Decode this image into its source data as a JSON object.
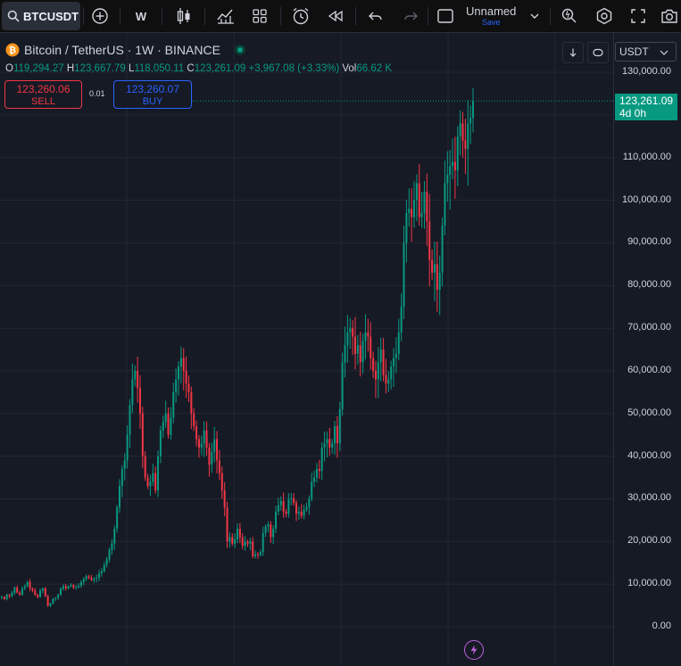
{
  "toolbar": {
    "symbol": "BTCUSDT",
    "interval": "W",
    "layout_name": "Unnamed",
    "layout_save": "Save",
    "icons": [
      "search-icon",
      "add-symbol-icon",
      "candles-icon",
      "indicators-icon",
      "templates-icon",
      "alert-icon",
      "replay-icon",
      "undo-icon",
      "redo-icon",
      "layout-icon",
      "chevron-down-icon",
      "quick-search-icon",
      "settings-icon",
      "fullscreen-icon",
      "screenshot-icon"
    ]
  },
  "legend": {
    "title": "Bitcoin / TetherUS · 1W · BINANCE",
    "open_label": "O",
    "open": "119,294.27",
    "high_label": "H",
    "high": "123,667.79",
    "low_label": "L",
    "low": "118,050.11",
    "close_label": "C",
    "close": "123,261.09",
    "change": "+3,967.08 (+3.33%)",
    "volume_label": "Vol",
    "volume": "66.62 K"
  },
  "trade": {
    "sell_price": "123,260.06",
    "sell_label": "SELL",
    "spread": "0.01",
    "buy_price": "123,260.07",
    "buy_label": "BUY"
  },
  "price_axis": {
    "currency": "USDT",
    "last_price": "123,261.09",
    "countdown": "4d 0h"
  },
  "colors": {
    "up": "#089981",
    "down": "#f23645",
    "buy": "#2962ff",
    "accent": "#c060e0"
  },
  "chart_data": {
    "type": "candlestick",
    "title": "Bitcoin / TetherUS · 1W · BINANCE",
    "ylim": [
      -3000,
      133000
    ],
    "y_ticks": [
      0,
      10000,
      20000,
      30000,
      40000,
      50000,
      60000,
      70000,
      80000,
      90000,
      100000,
      110000,
      120000,
      130000
    ],
    "y_tick_labels": [
      "0.00",
      "10,000.00",
      "20,000.00",
      "30,000.00",
      "40,000.00",
      "50,000.00",
      "60,000.00",
      "70,000.00",
      "80,000.00",
      "90,000.00",
      "100,000.00",
      "110,000.00",
      "120,000.00",
      "130,000.00"
    ],
    "last": 123261.09,
    "series_closes": [
      7000,
      6500,
      7500,
      7200,
      8000,
      9200,
      8000,
      7500,
      9000,
      9500,
      10500,
      9000,
      8500,
      7500,
      7000,
      8500,
      9000,
      7200,
      4900,
      5500,
      6500,
      6800,
      7500,
      8900,
      9500,
      9000,
      9500,
      9800,
      9200,
      9300,
      9600,
      10500,
      11200,
      11800,
      11500,
      11000,
      11300,
      11500,
      12500,
      13000,
      14500,
      15800,
      18000,
      19500,
      23000,
      28000,
      33000,
      37000,
      39000,
      45000,
      52000,
      58000,
      60000,
      56000,
      50000,
      40000,
      35000,
      33000,
      34000,
      36000,
      32000,
      40000,
      46000,
      48000,
      50000,
      45000,
      49000,
      55000,
      58000,
      61000,
      63000,
      60000,
      57000,
      55000,
      50000,
      47000,
      44000,
      42000,
      43000,
      46000,
      42000,
      38000,
      41000,
      44000,
      39000,
      36000,
      32000,
      28000,
      20000,
      21000,
      19500,
      20500,
      23000,
      21000,
      19000,
      20000,
      19500,
      20000,
      16500,
      17000,
      16800,
      17500,
      22000,
      23500,
      24000,
      21000,
      23000,
      27000,
      28500,
      29500,
      27000,
      26500,
      30000,
      30200,
      29000,
      26500,
      27000,
      26000,
      27500,
      28000,
      30000,
      34000,
      35000,
      37000,
      36500,
      42000,
      43000,
      44000,
      42000,
      43000,
      47000,
      43000,
      51000,
      62000,
      66000,
      69000,
      70000,
      68000,
      64000,
      66000,
      62000,
      67000,
      69000,
      68000,
      63000,
      60000,
      58000,
      62000,
      65000,
      59000,
      57000,
      58000,
      61000,
      63000,
      64000,
      69000,
      75000,
      90000,
      97000,
      98000,
      96000,
      100000,
      104000,
      96000,
      97000,
      102000,
      95000,
      86000,
      83000,
      85000,
      79000,
      83000,
      94000,
      104000,
      106000,
      108000,
      109000,
      107000,
      115000,
      118000,
      114000,
      112000,
      118000,
      119294,
      123261
    ]
  }
}
